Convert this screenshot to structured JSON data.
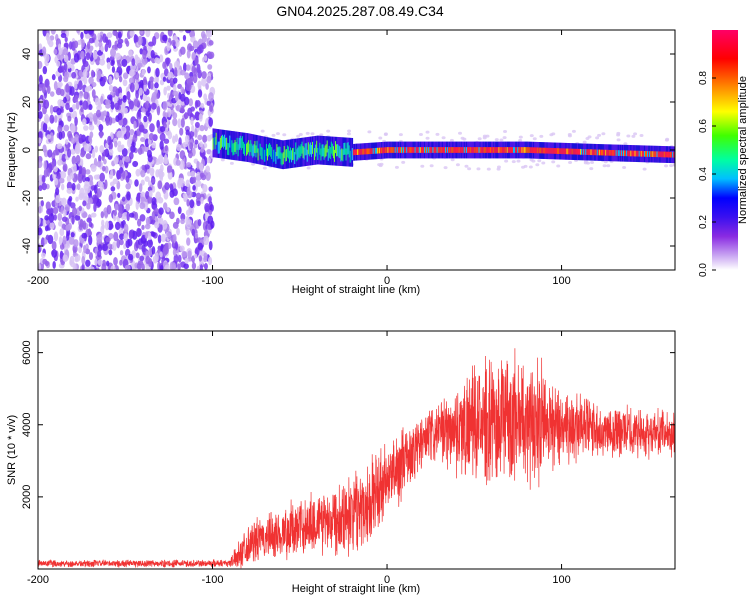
{
  "title": "GN04.2025.287.08.49.C34",
  "chart_data": [
    {
      "type": "heatmap",
      "xlabel": "Height of straight line (km)",
      "ylabel": "Frequency (Hz)",
      "xlim": [
        -200,
        165
      ],
      "ylim": [
        -50,
        50
      ],
      "xticks": [
        -200,
        -100,
        0,
        100
      ],
      "yticks": [
        -40,
        -20,
        0,
        20,
        40
      ],
      "colorbar": {
        "label": "Normalized spectral amplitude",
        "range": [
          0,
          1
        ],
        "ticks": [
          0.0,
          0.2,
          0.4,
          0.6,
          0.8
        ],
        "tick_labels": [
          "0.0",
          "0.2",
          "0.4",
          "0.6",
          "0.8"
        ],
        "colors": [
          "#ffffff",
          "#c9a6f2",
          "#8a2be2",
          "#5a18e8",
          "#0000ff",
          "#00bfff",
          "#00ff80",
          "#7fff00",
          "#ffff00",
          "#ff8c00",
          "#ff0000",
          "#ff0066"
        ]
      },
      "segments": [
        {
          "name": "noise",
          "x_range": [
            -200,
            -100
          ],
          "freq_range": [
            -50,
            50
          ]
        },
        {
          "name": "trail",
          "x_range": [
            -100,
            165
          ],
          "centerline": [
            [
              -100,
              3
            ],
            [
              -80,
              1
            ],
            [
              -60,
              -2
            ],
            [
              -40,
              0
            ],
            [
              -20,
              -1
            ],
            [
              0,
              0
            ],
            [
              40,
              0
            ],
            [
              80,
              0
            ],
            [
              120,
              -1
            ],
            [
              165,
              -2
            ]
          ]
        }
      ]
    },
    {
      "type": "line",
      "xlabel": "Height of straight line (km)",
      "ylabel": "SNR (10 * v/v)",
      "xlim": [
        -200,
        165
      ],
      "ylim": [
        0,
        6600
      ],
      "xticks": [
        -200,
        -100,
        0,
        100
      ],
      "yticks": [
        2000,
        4000,
        6000
      ],
      "color": "#f03232",
      "envelope": {
        "x": [
          -200,
          -110,
          -90,
          -85,
          -80,
          -60,
          -40,
          -20,
          -10,
          0,
          10,
          20,
          30,
          40,
          50,
          60,
          70,
          80,
          90,
          100,
          120,
          140,
          165
        ],
        "mean": [
          150,
          150,
          170,
          400,
          700,
          1000,
          1300,
          1600,
          1900,
          2400,
          3000,
          3500,
          3800,
          3900,
          4000,
          4100,
          4200,
          4200,
          4100,
          4000,
          3900,
          3800,
          3750
        ],
        "spread": [
          120,
          120,
          130,
          450,
          650,
          850,
          1050,
          1300,
          1450,
          1300,
          1100,
          1000,
          900,
          1500,
          1800,
          2000,
          2100,
          2200,
          1800,
          1300,
          900,
          800,
          700
        ]
      }
    }
  ]
}
